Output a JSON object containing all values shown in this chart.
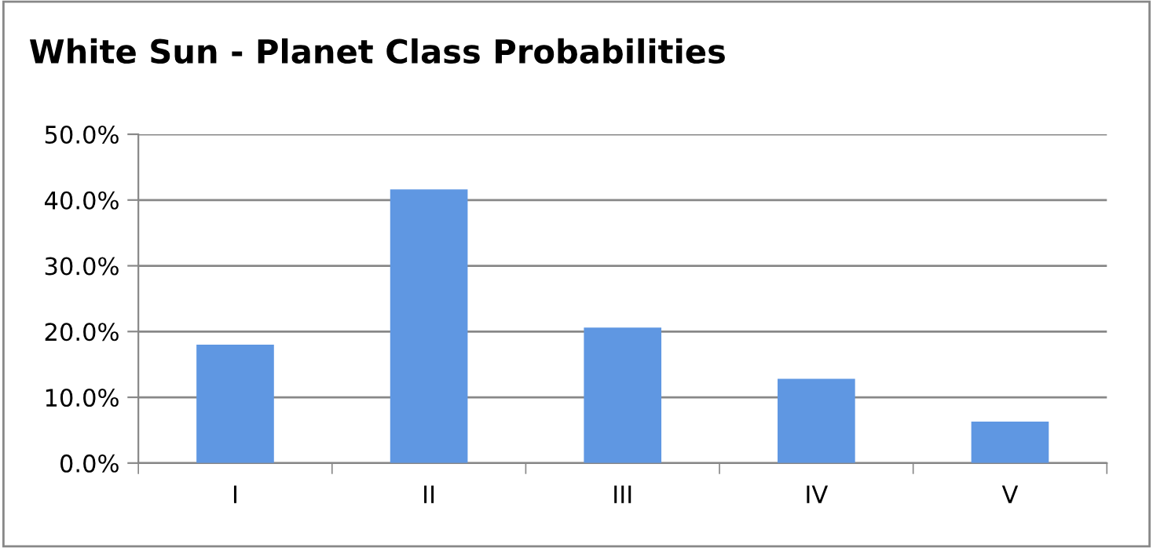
{
  "chart_data": {
    "type": "bar",
    "title": "White Sun - Planet Class Probabilities",
    "categories": [
      "I",
      "II",
      "III",
      "IV",
      "V"
    ],
    "values": [
      18.0,
      41.6,
      20.6,
      12.8,
      6.3
    ],
    "color": "#5f97e2",
    "ylim": [
      0,
      50
    ],
    "yticks": [
      {
        "value": 0,
        "label": "0.0%"
      },
      {
        "value": 10,
        "label": "10.0%"
      },
      {
        "value": 20,
        "label": "20.0%"
      },
      {
        "value": 30,
        "label": "30.0%"
      },
      {
        "value": 40,
        "label": "40.0%"
      },
      {
        "value": 50,
        "label": "50.0%"
      }
    ],
    "grid": "y",
    "legend": false
  }
}
